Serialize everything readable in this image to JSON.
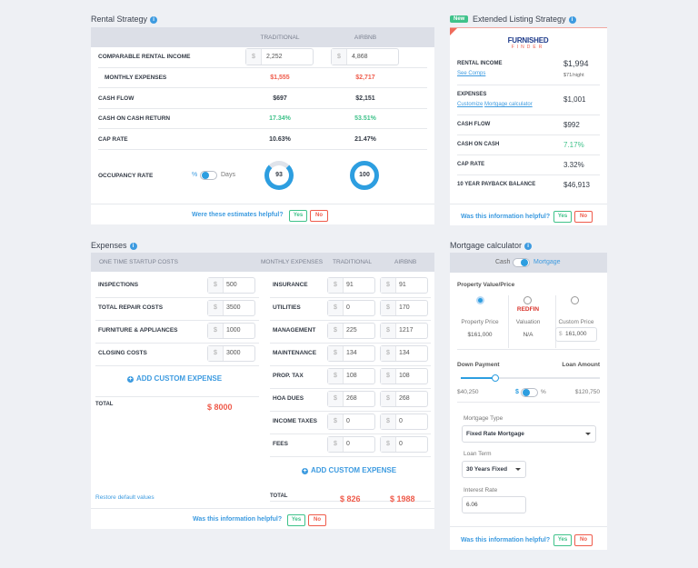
{
  "rental": {
    "title": "Rental Strategy",
    "col_traditional": "TRADITIONAL",
    "col_airbnb": "AIRBNB",
    "income_label": "COMPARABLE RENTAL INCOME",
    "currency": "$",
    "income_traditional": "2,252",
    "income_airbnb": "4,868",
    "rows": [
      {
        "label": "MONTHLY EXPENSES",
        "traditional": "$1,555",
        "airbnb": "$2,717",
        "color": "red",
        "expandable": true
      },
      {
        "label": "CASH FLOW",
        "traditional": "$697",
        "airbnb": "$2,151",
        "color": ""
      },
      {
        "label": "CASH ON CASH RETURN",
        "traditional": "17.34%",
        "airbnb": "53.51%",
        "color": "green"
      },
      {
        "label": "CAP RATE",
        "traditional": "10.63%",
        "airbnb": "21.47%",
        "color": ""
      }
    ],
    "occupancy_label": "OCCUPANCY RATE",
    "toggle_left": "%",
    "toggle_right": "Days",
    "occupancy_traditional": "93",
    "occupancy_airbnb": "100",
    "feedback": "Were these estimates helpful?",
    "yes": "Yes",
    "no": "No"
  },
  "extended": {
    "badge": "New",
    "title": "Extended Listing Strategy",
    "logo_top": "FURNISHED",
    "logo_bottom": "FINDER",
    "rental_income_label": "RENTAL INCOME",
    "rental_income": "$1,994",
    "see_comps": "See Comps",
    "per_night": "$71/night",
    "expenses_label": "EXPENSES",
    "expenses": "$1,001",
    "customize": "Customize",
    "mortgage_calc": "Mortgage calculator",
    "rows": [
      {
        "label": "CASH FLOW",
        "value": "$992",
        "color": ""
      },
      {
        "label": "CASH ON CASH",
        "value": "7.17%",
        "color": "green"
      },
      {
        "label": "CAP RATE",
        "value": "3.32%",
        "color": ""
      },
      {
        "label": "10 YEAR PAYBACK BALANCE",
        "value": "$46,913",
        "color": ""
      }
    ],
    "feedback": "Was this information helpful?",
    "yes": "Yes",
    "no": "No"
  },
  "expenses": {
    "title": "Expenses",
    "col_startup": "ONE TIME STARTUP COSTS",
    "col_monthly": "MONTHLY EXPENSES",
    "col_traditional": "TRADITIONAL",
    "col_airbnb": "AIRBNB",
    "currency": "$",
    "startup": [
      {
        "label": "INSPECTIONS",
        "value": "500"
      },
      {
        "label": "TOTAL REPAIR COSTS",
        "value": "3500"
      },
      {
        "label": "FURNITURE & APPLIANCES",
        "value": "1000"
      },
      {
        "label": "CLOSING COSTS",
        "value": "3000"
      }
    ],
    "monthly": [
      {
        "label": "INSURANCE",
        "traditional": "91",
        "airbnb": "91"
      },
      {
        "label": "UTILITIES",
        "traditional": "0",
        "airbnb": "170"
      },
      {
        "label": "MANAGEMENT",
        "traditional": "225",
        "airbnb": "1217"
      },
      {
        "label": "MAINTENANCE",
        "traditional": "134",
        "airbnb": "134"
      },
      {
        "label": "PROP. TAX",
        "traditional": "108",
        "airbnb": "108"
      },
      {
        "label": "HOA DUES",
        "traditional": "268",
        "airbnb": "268"
      },
      {
        "label": "INCOME TAXES",
        "traditional": "0",
        "airbnb": "0"
      },
      {
        "label": "FEES",
        "traditional": "0",
        "airbnb": "0"
      }
    ],
    "add_custom": "ADD CUSTOM EXPENSE",
    "total_label": "TOTAL",
    "startup_total": "$ 8000",
    "monthly_total_traditional": "$ 826",
    "monthly_total_airbnb": "$ 1988",
    "restore": "Restore default values",
    "feedback": "Was this information helpful?",
    "yes": "Yes",
    "no": "No"
  },
  "mortgage": {
    "title": "Mortgage calculator",
    "toggle_left": "Cash",
    "toggle_right": "Mortgage",
    "property_value_label": "Property Value/Price",
    "options": [
      {
        "label": "Property Price",
        "value": "$161,000",
        "selected": true
      },
      {
        "brand": "REDFIN",
        "label": "Valuation",
        "value": "N/A",
        "selected": false
      },
      {
        "label": "Custom Price",
        "value": "161,000",
        "selected": false
      }
    ],
    "currency": "$",
    "down_payment_label": "Down Payment",
    "loan_amount_label": "Loan Amount",
    "down_payment_fraction": 0.25,
    "down_payment": "$40,250",
    "loan_amount": "$120,750",
    "unit_left": "$",
    "unit_right": "%",
    "mortgage_type_label": "Mortgage Type",
    "mortgage_type": "Fixed Rate Mortgage",
    "loan_term_label": "Loan Term",
    "loan_term": "30 Years Fixed",
    "interest_rate_label": "Interest Rate",
    "interest_rate": "6.06",
    "feedback": "Was this information helpful?",
    "yes": "Yes",
    "no": "No"
  }
}
